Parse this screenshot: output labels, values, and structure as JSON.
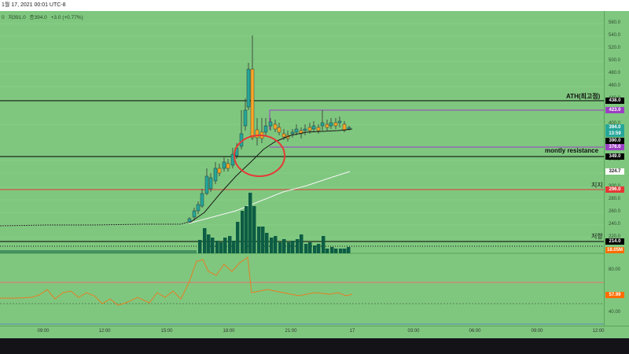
{
  "header": {
    "datetime": "1월 17, 2021 00:01 UTC-8",
    "ohlc": [
      "0",
      "저391.0",
      "종394.0",
      "+3.0 (+0.77%)"
    ]
  },
  "price_scale": {
    "ticks": [
      "560.0",
      "540.0",
      "520.0",
      "500.0",
      "480.0",
      "460.0",
      "440.0",
      "400.0",
      "340.0",
      "320.0",
      "300.0",
      "280.0",
      "260.0",
      "240.0",
      "220.0",
      "80.00",
      "40.00"
    ]
  },
  "level_tags": [
    {
      "label": "438.0",
      "bg": "#000000",
      "fg": "#ffffff"
    },
    {
      "label": "423.0",
      "bg": "#9b3fc4",
      "fg": "#ffffff"
    },
    {
      "label": "394.0",
      "bg": "#26a69a",
      "fg": "#ffffff"
    },
    {
      "label": "13:59",
      "bg": "#26a69a",
      "fg": "#ffffff"
    },
    {
      "label": "390.0",
      "bg": "#000000",
      "fg": "#ffffff"
    },
    {
      "label": "376.0",
      "bg": "#9b3fc4",
      "fg": "#ffffff"
    },
    {
      "label": "349.0",
      "bg": "#000000",
      "fg": "#ffffff"
    },
    {
      "label": "324.7",
      "bg": "#ffffff",
      "fg": "#222222"
    },
    {
      "label": "296.0",
      "bg": "#e53935",
      "fg": "#ffffff"
    },
    {
      "label": "214.0",
      "bg": "#000000",
      "fg": "#ffffff"
    },
    {
      "label": "18.05M",
      "bg": "#ff6d00",
      "fg": "#ffffff"
    },
    {
      "label": "57.99",
      "bg": "#ff6d00",
      "fg": "#ffffff"
    }
  ],
  "annotations": {
    "ath": "ATH(최고점)",
    "monthly_resistance": "montly resistance",
    "support": "지지",
    "resistance": "저항"
  },
  "time_axis": [
    "09:00",
    "12:00",
    "15:00",
    "18:00",
    "21:00",
    "17",
    "03:00",
    "06:00",
    "09:00",
    "12:00"
  ],
  "chart_data": {
    "type": "candlestick",
    "horizontal_levels": [
      438.0,
      423.0,
      390.0,
      376.0,
      349.0,
      296.0,
      214.0
    ],
    "last_price": 394.0,
    "rsi_last": 57.99,
    "volume_last": "18.05M"
  },
  "colors": {
    "background": "#7fc77f",
    "up": "#26a69a",
    "down": "#ffa726",
    "volume": "#0d5d44",
    "purple": "#9b3fc4",
    "red": "#e53935",
    "rsi": "#e67e22"
  }
}
